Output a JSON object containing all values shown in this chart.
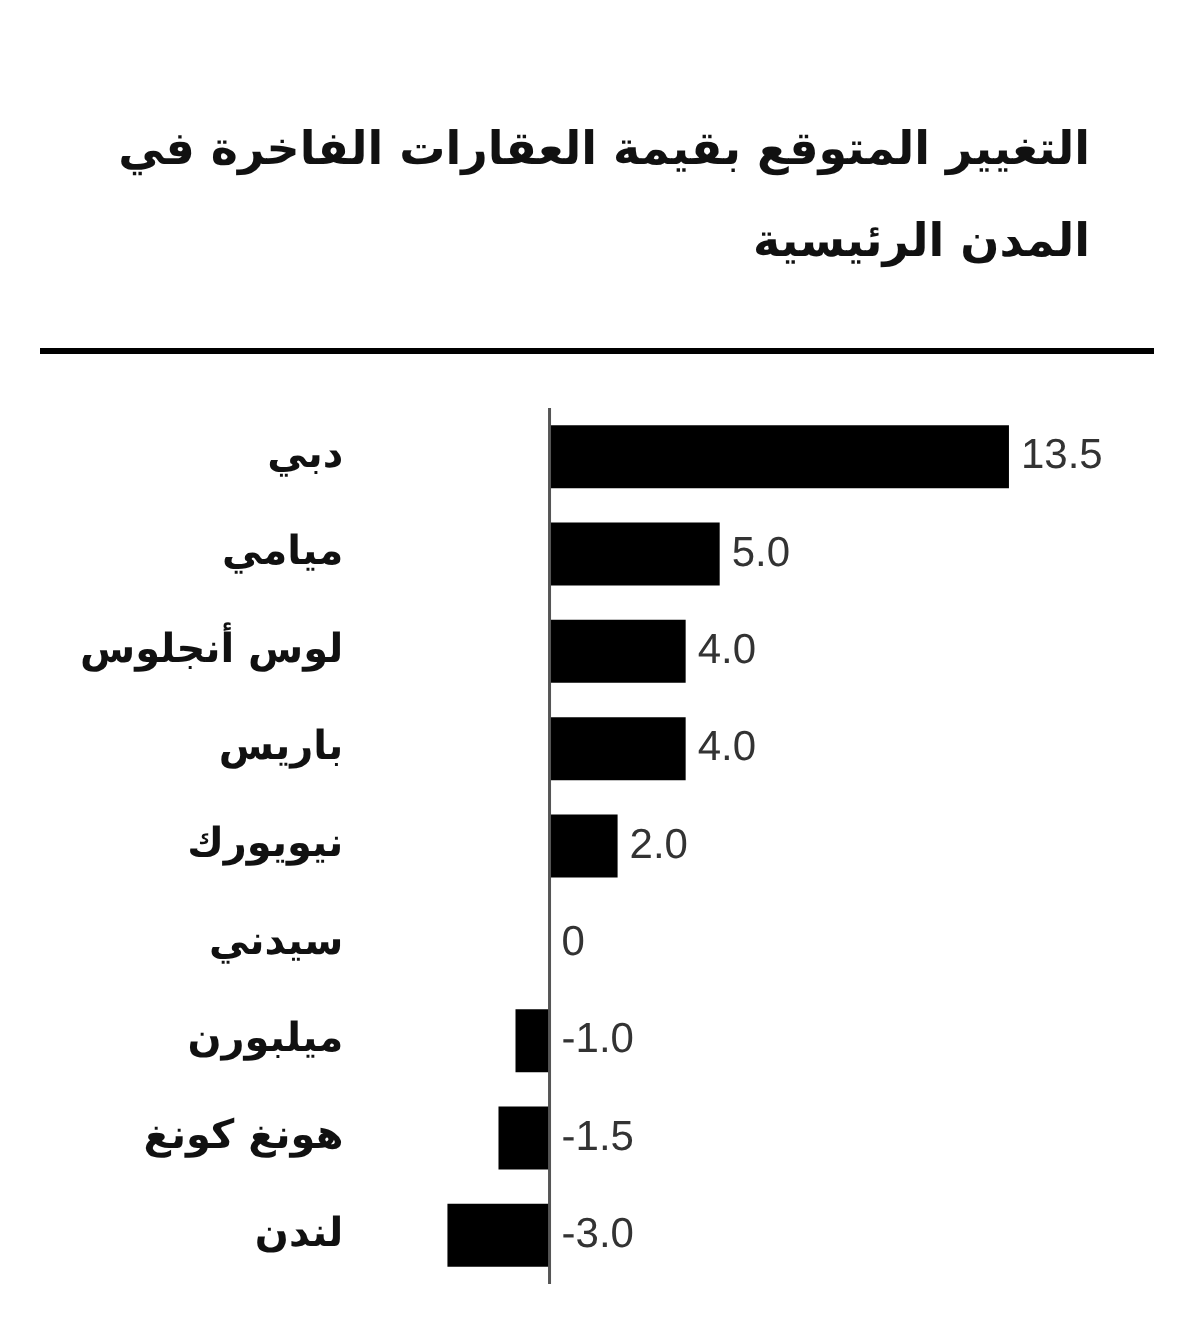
{
  "chart_data": {
    "type": "bar",
    "orientation": "horizontal",
    "title": "التغيير المتوقع بقيمة العقارات الفاخرة في المدن الرئيسية",
    "categories": [
      "دبي",
      "ميامي",
      "لوس أنجلوس",
      "باريس",
      "نيويورك",
      "سيدني",
      "ميلبورن",
      "هونغ كونغ",
      "لندن"
    ],
    "values": [
      13.5,
      5.0,
      4.0,
      4.0,
      2.0,
      0,
      -1.0,
      -1.5,
      -3.0
    ],
    "value_labels": [
      "13.5",
      "5.0",
      "4.0",
      "4.0",
      "2.0",
      "0",
      "-1.0",
      "-1.5",
      "-3.0"
    ],
    "color": "#000000"
  }
}
